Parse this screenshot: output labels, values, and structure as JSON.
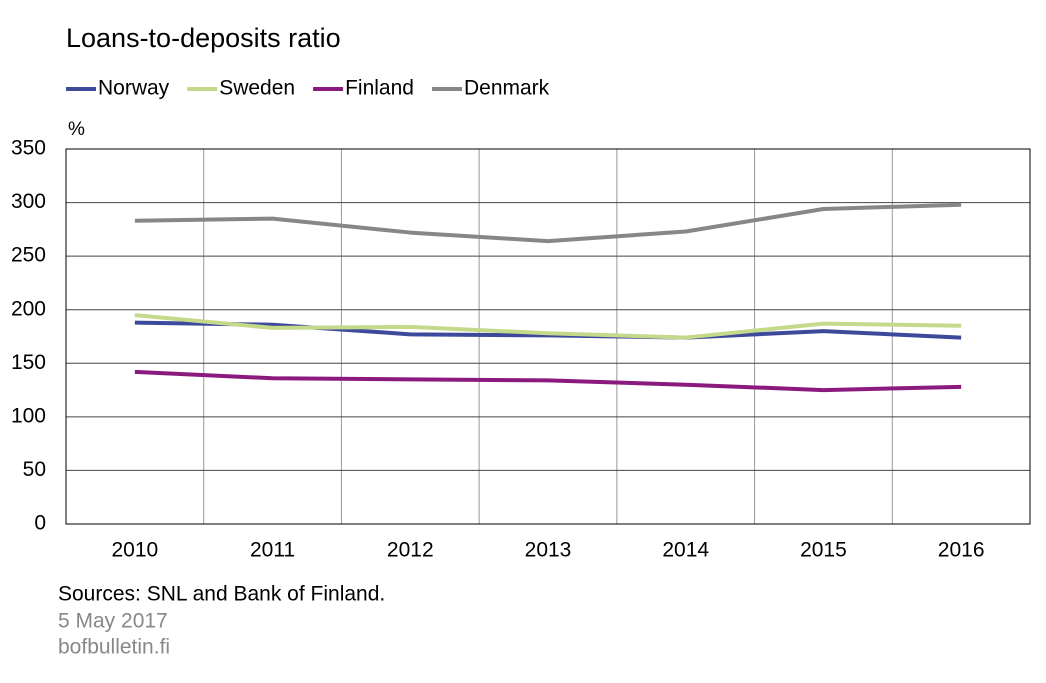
{
  "chart_data": {
    "type": "line",
    "title": "Loans-to-deposits ratio",
    "y_unit": "%",
    "categories": [
      "2010",
      "2011",
      "2012",
      "2013",
      "2014",
      "2015",
      "2016"
    ],
    "series": [
      {
        "name": "Norway",
        "color": "#3d4a9c",
        "values": [
          188,
          186,
          177,
          176,
          174,
          180,
          174
        ]
      },
      {
        "name": "Sweden",
        "color": "#c5d98a",
        "values": [
          195,
          183,
          184,
          178,
          174,
          187,
          185
        ]
      },
      {
        "name": "Finland",
        "color": "#8b1a7e",
        "values": [
          142,
          136,
          135,
          134,
          130,
          125,
          128
        ]
      },
      {
        "name": "Denmark",
        "color": "#878787",
        "values": [
          283,
          285,
          272,
          264,
          273,
          294,
          298
        ]
      }
    ],
    "ylim": [
      0,
      350
    ],
    "yticks": [
      0,
      50,
      100,
      150,
      200,
      250,
      300,
      350
    ],
    "grid": true,
    "legend": "top",
    "source": "Sources: SNL and Bank of Finland.",
    "date": "5 May 2017",
    "site": "bofbulletin.fi"
  }
}
